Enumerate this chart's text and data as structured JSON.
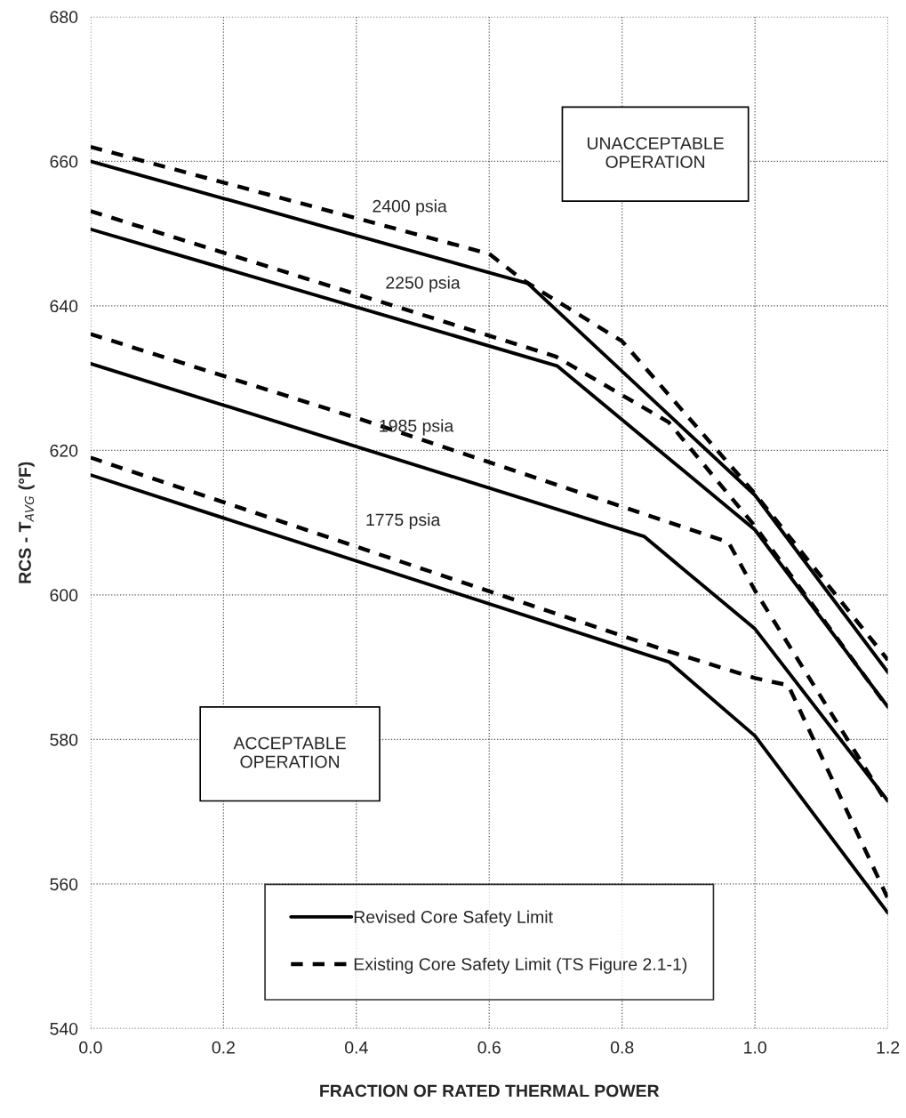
{
  "chart_data": {
    "type": "line",
    "xlabel": "FRACTION OF RATED THERMAL POWER",
    "ylabel": "RCS - T$_{AVG}$ (°F)",
    "xlim": [
      0,
      1.2
    ],
    "ylim": [
      540,
      680
    ],
    "xticks": [
      {
        "value": 0,
        "label": "0.0"
      },
      {
        "value": 0.2,
        "label": "0.2"
      },
      {
        "value": 0.4,
        "label": "0.4"
      },
      {
        "value": 0.6,
        "label": "0.6"
      },
      {
        "value": 0.8,
        "label": "0.8"
      },
      {
        "value": 1,
        "label": "1.0"
      },
      {
        "value": 1.2,
        "label": "1.2"
      }
    ],
    "yticks": [
      540,
      560,
      580,
      600,
      620,
      640,
      660,
      680
    ],
    "grid": true,
    "legend": "bottom",
    "marker": "none",
    "series": [
      {
        "name": "Revised Core Safety Limit",
        "color": "#000000",
        "line_style": "solid",
        "x": [
          0,
          0.658,
          1.0,
          1.2
        ],
        "values": [
          660,
          643.1,
          613.8,
          589.3
        ]
      },
      {
        "color": "#000000",
        "line_style": "solid",
        "x": [
          0,
          0.702,
          1.0,
          1.2
        ],
        "values": [
          650.6,
          631.7,
          609,
          584.5
        ]
      },
      {
        "color": "#000000",
        "line_style": "solid",
        "x": [
          0,
          0.833,
          1.0,
          1.2
        ],
        "values": [
          632,
          608.1,
          595.3,
          571.5
        ]
      },
      {
        "color": "#000000",
        "line_style": "solid",
        "x": [
          0,
          0.871,
          1.0,
          1.2
        ],
        "values": [
          616.6,
          590.7,
          580.5,
          556
        ]
      },
      {
        "name": "Existing Core Safety Limit (TS Figure 2.1-1)",
        "color": "#000000",
        "line_style": "dashed",
        "x": [
          0,
          0.6,
          0.65,
          0.8,
          1.0,
          1.2
        ],
        "values": [
          662,
          647.2,
          643.6,
          635.1,
          614,
          591
        ]
      },
      {
        "color": "#000000",
        "line_style": "dashed",
        "x": [
          0,
          0.7,
          0.87,
          1.0,
          1.2
        ],
        "values": [
          653.1,
          633,
          623.9,
          609.5,
          584.4
        ]
      },
      {
        "color": "#000000",
        "line_style": "dashed",
        "x": [
          0,
          0.4,
          0.96,
          1.0,
          1.2
        ],
        "values": [
          636.1,
          624.5,
          607.3,
          600.6,
          571
        ]
      },
      {
        "color": "#000000",
        "line_style": "dashed",
        "x": [
          0,
          0.86,
          1.0,
          1.05,
          1.2
        ],
        "values": [
          619,
          592.5,
          588.5,
          587.5,
          558
        ]
      }
    ],
    "annotations": [
      "2400 psia",
      "2250 psia",
      "1985 psia",
      "1775 psia",
      "UNACCEPTABLE\nOPERATION",
      "ACCEPTABLE\nOPERATION"
    ]
  }
}
